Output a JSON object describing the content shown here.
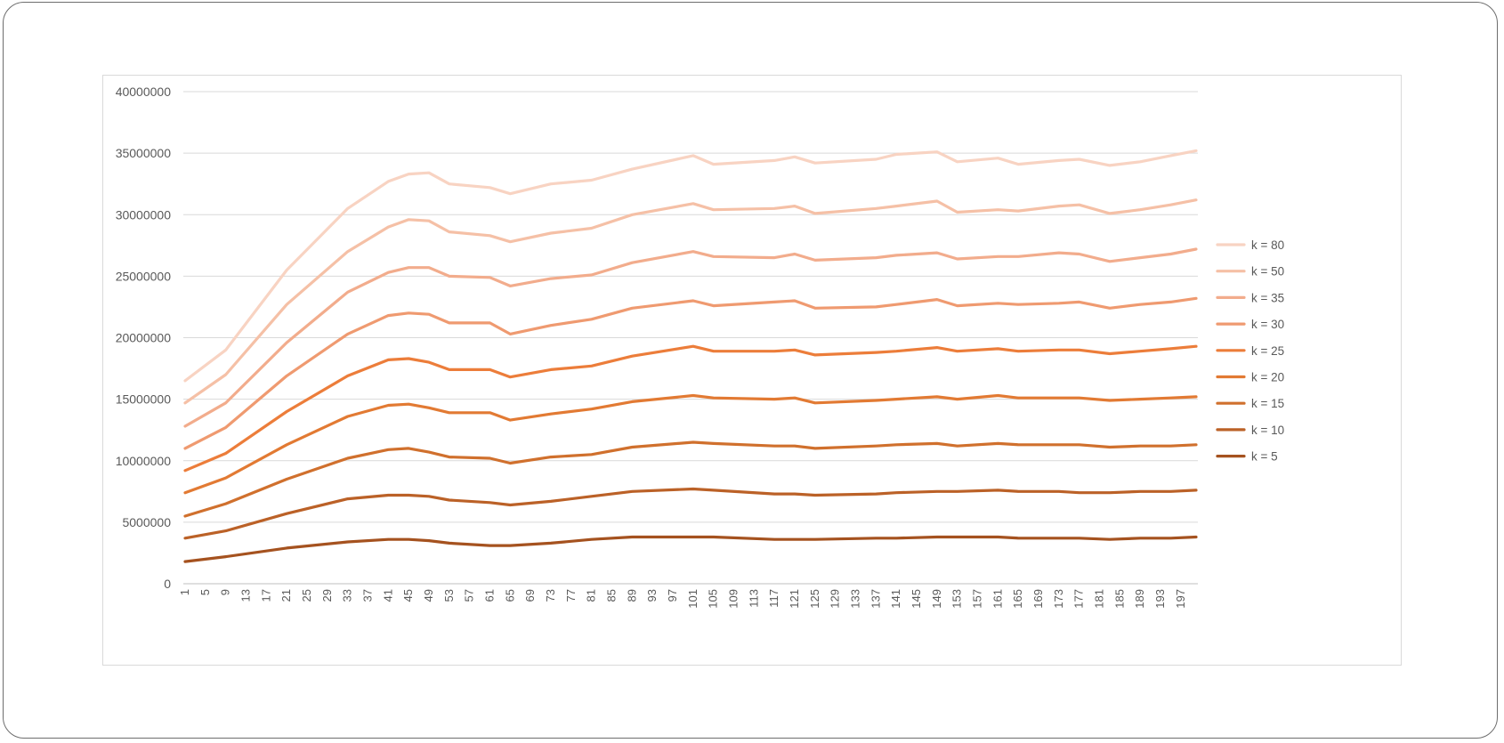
{
  "chart_data": {
    "type": "line",
    "title": "",
    "xlabel": "",
    "ylabel": "",
    "ylim": [
      0,
      40000000
    ],
    "yticks": [
      "0",
      "5000000",
      "10000000",
      "15000000",
      "20000000",
      "25000000",
      "30000000",
      "35000000",
      "40000000"
    ],
    "xlim": [
      1,
      200
    ],
    "xtick_labels": [
      "1",
      "5",
      "9",
      "13",
      "17",
      "21",
      "25",
      "29",
      "33",
      "37",
      "41",
      "45",
      "49",
      "53",
      "57",
      "61",
      "65",
      "69",
      "73",
      "77",
      "81",
      "85",
      "89",
      "93",
      "97",
      "101",
      "105",
      "109",
      "113",
      "117",
      "121",
      "125",
      "129",
      "133",
      "137",
      "141",
      "145",
      "149",
      "153",
      "157",
      "161",
      "165",
      "169",
      "173",
      "177",
      "181",
      "185",
      "189",
      "193",
      "197"
    ],
    "grid": true,
    "legend_position": "right",
    "series": [
      {
        "name": "k = 80",
        "color": "#f8d3c2",
        "points": [
          [
            1,
            16500000
          ],
          [
            9,
            19000000
          ],
          [
            21,
            25500000
          ],
          [
            33,
            30500000
          ],
          [
            41,
            32700000
          ],
          [
            45,
            33300000
          ],
          [
            49,
            33400000
          ],
          [
            53,
            32500000
          ],
          [
            61,
            32200000
          ],
          [
            65,
            31700000
          ],
          [
            73,
            32500000
          ],
          [
            81,
            32800000
          ],
          [
            89,
            33700000
          ],
          [
            101,
            34800000
          ],
          [
            105,
            34100000
          ],
          [
            117,
            34400000
          ],
          [
            121,
            34700000
          ],
          [
            125,
            34200000
          ],
          [
            137,
            34500000
          ],
          [
            141,
            34900000
          ],
          [
            149,
            35100000
          ],
          [
            153,
            34300000
          ],
          [
            161,
            34600000
          ],
          [
            165,
            34100000
          ],
          [
            173,
            34400000
          ],
          [
            177,
            34500000
          ],
          [
            183,
            34000000
          ],
          [
            189,
            34300000
          ],
          [
            195,
            34800000
          ],
          [
            200,
            35200000
          ]
        ]
      },
      {
        "name": "k = 50",
        "color": "#f5c0a6",
        "points": [
          [
            1,
            14700000
          ],
          [
            9,
            17000000
          ],
          [
            21,
            22700000
          ],
          [
            33,
            27000000
          ],
          [
            41,
            29000000
          ],
          [
            45,
            29600000
          ],
          [
            49,
            29500000
          ],
          [
            53,
            28600000
          ],
          [
            61,
            28300000
          ],
          [
            65,
            27800000
          ],
          [
            73,
            28500000
          ],
          [
            81,
            28900000
          ],
          [
            89,
            30000000
          ],
          [
            101,
            30900000
          ],
          [
            105,
            30400000
          ],
          [
            117,
            30500000
          ],
          [
            121,
            30700000
          ],
          [
            125,
            30100000
          ],
          [
            137,
            30500000
          ],
          [
            141,
            30700000
          ],
          [
            149,
            31100000
          ],
          [
            153,
            30200000
          ],
          [
            161,
            30400000
          ],
          [
            165,
            30300000
          ],
          [
            173,
            30700000
          ],
          [
            177,
            30800000
          ],
          [
            183,
            30100000
          ],
          [
            189,
            30400000
          ],
          [
            195,
            30800000
          ],
          [
            200,
            31200000
          ]
        ]
      },
      {
        "name": "k = 35",
        "color": "#f2ac8c",
        "points": [
          [
            1,
            12800000
          ],
          [
            9,
            14700000
          ],
          [
            21,
            19600000
          ],
          [
            33,
            23700000
          ],
          [
            41,
            25300000
          ],
          [
            45,
            25700000
          ],
          [
            49,
            25700000
          ],
          [
            53,
            25000000
          ],
          [
            61,
            24900000
          ],
          [
            65,
            24200000
          ],
          [
            73,
            24800000
          ],
          [
            81,
            25100000
          ],
          [
            89,
            26100000
          ],
          [
            101,
            27000000
          ],
          [
            105,
            26600000
          ],
          [
            117,
            26500000
          ],
          [
            121,
            26800000
          ],
          [
            125,
            26300000
          ],
          [
            137,
            26500000
          ],
          [
            141,
            26700000
          ],
          [
            149,
            26900000
          ],
          [
            153,
            26400000
          ],
          [
            161,
            26600000
          ],
          [
            165,
            26600000
          ],
          [
            173,
            26900000
          ],
          [
            177,
            26800000
          ],
          [
            183,
            26200000
          ],
          [
            189,
            26500000
          ],
          [
            195,
            26800000
          ],
          [
            200,
            27200000
          ]
        ]
      },
      {
        "name": "k = 30",
        "color": "#ef9a70",
        "points": [
          [
            1,
            11000000
          ],
          [
            9,
            12700000
          ],
          [
            21,
            16900000
          ],
          [
            33,
            20300000
          ],
          [
            41,
            21800000
          ],
          [
            45,
            22000000
          ],
          [
            49,
            21900000
          ],
          [
            53,
            21200000
          ],
          [
            61,
            21200000
          ],
          [
            65,
            20300000
          ],
          [
            73,
            21000000
          ],
          [
            81,
            21500000
          ],
          [
            89,
            22400000
          ],
          [
            101,
            23000000
          ],
          [
            105,
            22600000
          ],
          [
            117,
            22900000
          ],
          [
            121,
            23000000
          ],
          [
            125,
            22400000
          ],
          [
            137,
            22500000
          ],
          [
            141,
            22700000
          ],
          [
            149,
            23100000
          ],
          [
            153,
            22600000
          ],
          [
            161,
            22800000
          ],
          [
            165,
            22700000
          ],
          [
            173,
            22800000
          ],
          [
            177,
            22900000
          ],
          [
            183,
            22400000
          ],
          [
            189,
            22700000
          ],
          [
            195,
            22900000
          ],
          [
            200,
            23200000
          ]
        ]
      },
      {
        "name": "k = 25",
        "color": "#ec7d3a",
        "points": [
          [
            1,
            9200000
          ],
          [
            9,
            10600000
          ],
          [
            21,
            14000000
          ],
          [
            33,
            16900000
          ],
          [
            41,
            18200000
          ],
          [
            45,
            18300000
          ],
          [
            49,
            18000000
          ],
          [
            53,
            17400000
          ],
          [
            61,
            17400000
          ],
          [
            65,
            16800000
          ],
          [
            73,
            17400000
          ],
          [
            81,
            17700000
          ],
          [
            89,
            18500000
          ],
          [
            101,
            19300000
          ],
          [
            105,
            18900000
          ],
          [
            117,
            18900000
          ],
          [
            121,
            19000000
          ],
          [
            125,
            18600000
          ],
          [
            137,
            18800000
          ],
          [
            141,
            18900000
          ],
          [
            149,
            19200000
          ],
          [
            153,
            18900000
          ],
          [
            161,
            19100000
          ],
          [
            165,
            18900000
          ],
          [
            173,
            19000000
          ],
          [
            177,
            19000000
          ],
          [
            183,
            18700000
          ],
          [
            189,
            18900000
          ],
          [
            195,
            19100000
          ],
          [
            200,
            19300000
          ]
        ]
      },
      {
        "name": "k = 20",
        "color": "#e27a33",
        "points": [
          [
            1,
            7400000
          ],
          [
            9,
            8600000
          ],
          [
            21,
            11300000
          ],
          [
            33,
            13600000
          ],
          [
            41,
            14500000
          ],
          [
            45,
            14600000
          ],
          [
            49,
            14300000
          ],
          [
            53,
            13900000
          ],
          [
            61,
            13900000
          ],
          [
            65,
            13300000
          ],
          [
            73,
            13800000
          ],
          [
            81,
            14200000
          ],
          [
            89,
            14800000
          ],
          [
            101,
            15300000
          ],
          [
            105,
            15100000
          ],
          [
            117,
            15000000
          ],
          [
            121,
            15100000
          ],
          [
            125,
            14700000
          ],
          [
            137,
            14900000
          ],
          [
            141,
            15000000
          ],
          [
            149,
            15200000
          ],
          [
            153,
            15000000
          ],
          [
            161,
            15300000
          ],
          [
            165,
            15100000
          ],
          [
            173,
            15100000
          ],
          [
            177,
            15100000
          ],
          [
            183,
            14900000
          ],
          [
            189,
            15000000
          ],
          [
            195,
            15100000
          ],
          [
            200,
            15200000
          ]
        ]
      },
      {
        "name": "k = 15",
        "color": "#d0702d",
        "points": [
          [
            1,
            5500000
          ],
          [
            9,
            6500000
          ],
          [
            21,
            8500000
          ],
          [
            33,
            10200000
          ],
          [
            41,
            10900000
          ],
          [
            45,
            11000000
          ],
          [
            49,
            10700000
          ],
          [
            53,
            10300000
          ],
          [
            61,
            10200000
          ],
          [
            65,
            9800000
          ],
          [
            73,
            10300000
          ],
          [
            81,
            10500000
          ],
          [
            89,
            11100000
          ],
          [
            101,
            11500000
          ],
          [
            105,
            11400000
          ],
          [
            117,
            11200000
          ],
          [
            121,
            11200000
          ],
          [
            125,
            11000000
          ],
          [
            137,
            11200000
          ],
          [
            141,
            11300000
          ],
          [
            149,
            11400000
          ],
          [
            153,
            11200000
          ],
          [
            161,
            11400000
          ],
          [
            165,
            11300000
          ],
          [
            173,
            11300000
          ],
          [
            177,
            11300000
          ],
          [
            183,
            11100000
          ],
          [
            189,
            11200000
          ],
          [
            195,
            11200000
          ],
          [
            200,
            11300000
          ]
        ]
      },
      {
        "name": "k = 10",
        "color": "#bb6127",
        "points": [
          [
            1,
            3700000
          ],
          [
            9,
            4300000
          ],
          [
            21,
            5700000
          ],
          [
            33,
            6900000
          ],
          [
            41,
            7200000
          ],
          [
            45,
            7200000
          ],
          [
            49,
            7100000
          ],
          [
            53,
            6800000
          ],
          [
            61,
            6600000
          ],
          [
            65,
            6400000
          ],
          [
            73,
            6700000
          ],
          [
            81,
            7100000
          ],
          [
            89,
            7500000
          ],
          [
            101,
            7700000
          ],
          [
            105,
            7600000
          ],
          [
            117,
            7300000
          ],
          [
            121,
            7300000
          ],
          [
            125,
            7200000
          ],
          [
            137,
            7300000
          ],
          [
            141,
            7400000
          ],
          [
            149,
            7500000
          ],
          [
            153,
            7500000
          ],
          [
            161,
            7600000
          ],
          [
            165,
            7500000
          ],
          [
            173,
            7500000
          ],
          [
            177,
            7400000
          ],
          [
            183,
            7400000
          ],
          [
            189,
            7500000
          ],
          [
            195,
            7500000
          ],
          [
            200,
            7600000
          ]
        ]
      },
      {
        "name": "k = 5",
        "color": "#a5521f",
        "points": [
          [
            1,
            1800000
          ],
          [
            9,
            2200000
          ],
          [
            21,
            2900000
          ],
          [
            33,
            3400000
          ],
          [
            41,
            3600000
          ],
          [
            45,
            3600000
          ],
          [
            49,
            3500000
          ],
          [
            53,
            3300000
          ],
          [
            61,
            3100000
          ],
          [
            65,
            3100000
          ],
          [
            73,
            3300000
          ],
          [
            81,
            3600000
          ],
          [
            89,
            3800000
          ],
          [
            101,
            3800000
          ],
          [
            105,
            3800000
          ],
          [
            117,
            3600000
          ],
          [
            121,
            3600000
          ],
          [
            125,
            3600000
          ],
          [
            137,
            3700000
          ],
          [
            141,
            3700000
          ],
          [
            149,
            3800000
          ],
          [
            153,
            3800000
          ],
          [
            161,
            3800000
          ],
          [
            165,
            3700000
          ],
          [
            173,
            3700000
          ],
          [
            177,
            3700000
          ],
          [
            183,
            3600000
          ],
          [
            189,
            3700000
          ],
          [
            195,
            3700000
          ],
          [
            200,
            3800000
          ]
        ]
      }
    ]
  }
}
